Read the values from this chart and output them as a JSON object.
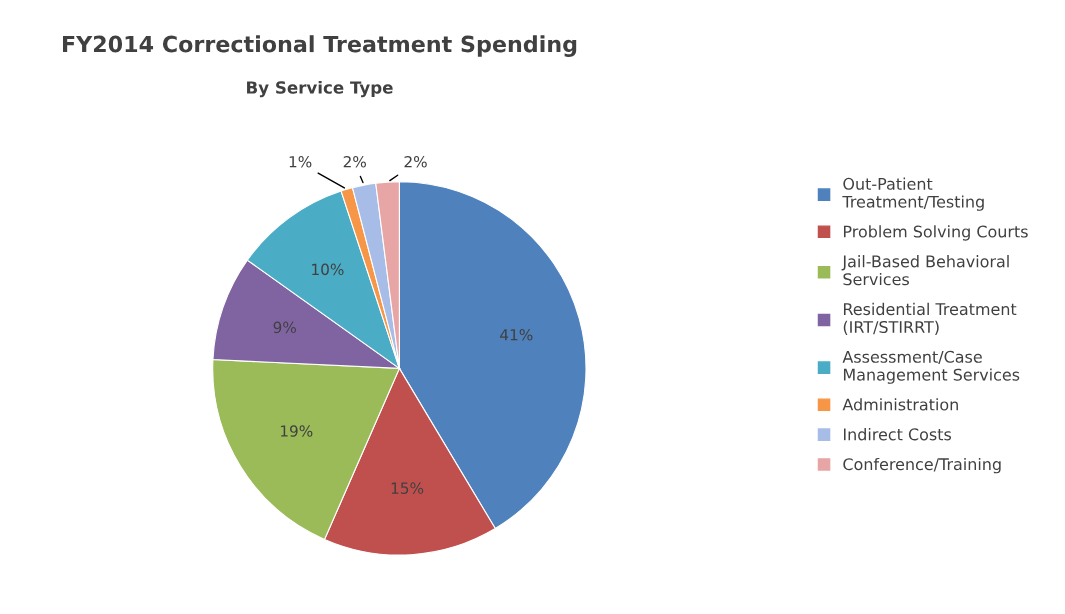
{
  "chart_data": {
    "type": "pie",
    "title": "FY2014 Correctional Treatment Spending",
    "subtitle": "By Service Type",
    "categories": [
      "Out-Patient\nTreatment/Testing",
      "Problem Solving Courts",
      "Jail-Based Behavioral\nServices",
      "Residential Treatment\n(IRT/STIRRT)",
      "Assessment/Case\nManagement Services",
      "Administration",
      "Indirect Costs",
      "Conference/Training"
    ],
    "values": [
      41,
      15,
      19,
      9,
      10,
      1,
      2,
      2
    ],
    "colors": [
      "#4f81bd",
      "#c0504d",
      "#9bbb59",
      "#8064a2",
      "#4bacc6",
      "#f79646",
      "#a7bde8",
      "#e8a5a5"
    ],
    "value_labels": [
      "41%",
      "15%",
      "19%",
      "9%",
      "10%",
      "1%",
      "2%",
      "2%"
    ],
    "legend": "right"
  }
}
